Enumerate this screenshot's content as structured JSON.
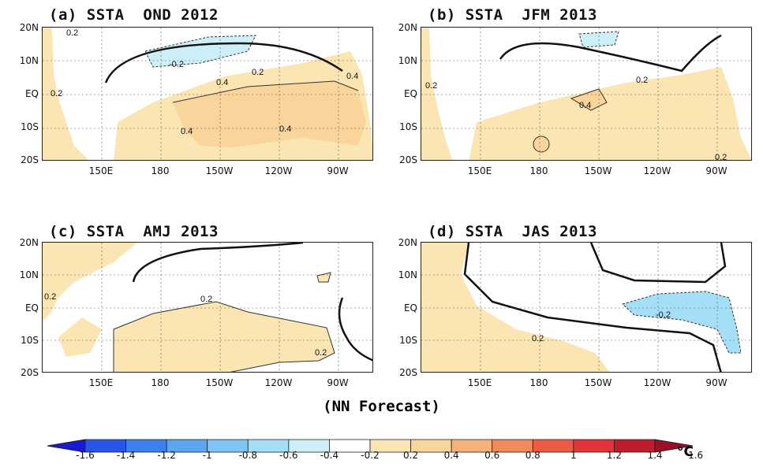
{
  "panels": [
    {
      "id": "a",
      "title": "(a) SSTA  OND 2012",
      "contour_labels": [
        "-0.2",
        "0.2",
        "0.4",
        "0.2",
        "0.4",
        "0.4",
        "0.4",
        "0.2"
      ]
    },
    {
      "id": "b",
      "title": "(b) SSTA  JFM 2013",
      "contour_labels": [
        "0.2",
        "0.2",
        "0.4",
        "0.2"
      ]
    },
    {
      "id": "c",
      "title": "(c) SSTA  AMJ 2013",
      "contour_labels": [
        "0.2",
        "0.2",
        "0.2"
      ]
    },
    {
      "id": "d",
      "title": "(d) SSTA  JAS 2013",
      "contour_labels": [
        "-0.2",
        "0.2"
      ]
    }
  ],
  "axes": {
    "y_ticks": [
      "20N",
      "10N",
      "EQ",
      "10S",
      "20S"
    ],
    "x_ticks": [
      "150E",
      "180",
      "150W",
      "120W",
      "90W"
    ]
  },
  "caption": "(NN Forecast)",
  "colorbar": {
    "unit": "°C",
    "tick_labels": [
      "-1.6",
      "-1.4",
      "-1.2",
      "-1",
      "-0.8",
      "-0.6",
      "-0.4",
      "-0.2",
      "0.2",
      "0.4",
      "0.6",
      "0.8",
      "1",
      "1.2",
      "1.4",
      "1.6"
    ],
    "colors": [
      "#1a1ad6",
      "#2a55ea",
      "#3d80f0",
      "#5aa6f2",
      "#7cc5f5",
      "#a5dff7",
      "#cdf0f8",
      "#ffffff",
      "#fbe6b3",
      "#f9d49b",
      "#f7b27a",
      "#f48a5c",
      "#ef5a44",
      "#e2343a",
      "#c11b2e",
      "#9b0f27"
    ]
  }
}
